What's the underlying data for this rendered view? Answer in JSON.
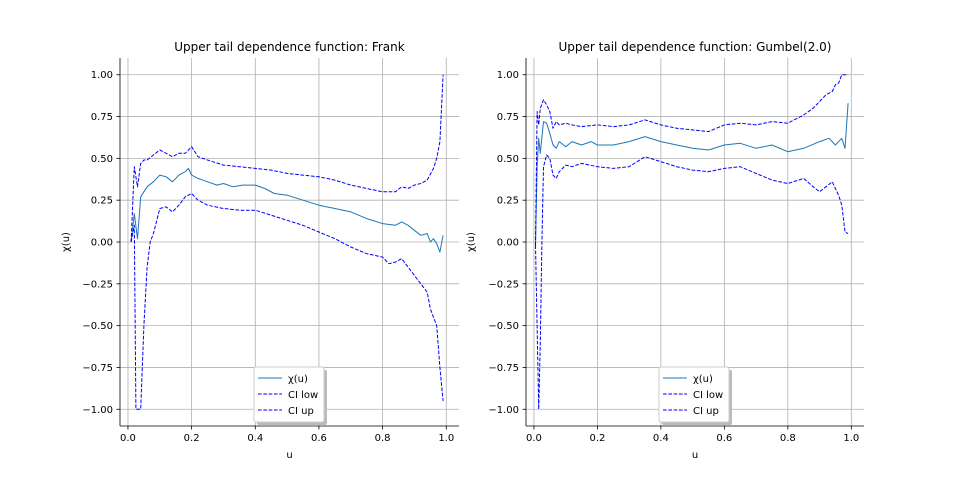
{
  "chart_data": [
    {
      "type": "line",
      "title": "Upper tail dependence function: Frank",
      "xlabel": "u",
      "ylabel": "χ(u)",
      "xlim": [
        -0.025,
        1.04
      ],
      "ylim": [
        -1.1,
        1.1
      ],
      "xticks": [
        0.0,
        0.2,
        0.4,
        0.6,
        0.8,
        1.0
      ],
      "xtick_labels": [
        "0.0",
        "0.2",
        "0.4",
        "0.6",
        "0.8",
        "1.0"
      ],
      "yticks": [
        -1.0,
        -0.75,
        -0.5,
        -0.25,
        0.0,
        0.25,
        0.5,
        0.75,
        1.0
      ],
      "ytick_labels": [
        "−1.00",
        "−0.75",
        "−0.50",
        "−0.25",
        "0.00",
        "0.25",
        "0.50",
        "0.75",
        "1.00"
      ],
      "grid": true,
      "legend_position": "lower-center",
      "series": [
        {
          "name": "χ(u)",
          "color": "#1f77b4",
          "dash": "solid",
          "x": [
            0.01,
            0.02,
            0.03,
            0.04,
            0.05,
            0.06,
            0.08,
            0.1,
            0.12,
            0.14,
            0.16,
            0.18,
            0.19,
            0.2,
            0.22,
            0.25,
            0.28,
            0.3,
            0.33,
            0.36,
            0.4,
            0.43,
            0.46,
            0.5,
            0.55,
            0.6,
            0.65,
            0.7,
            0.75,
            0.8,
            0.84,
            0.86,
            0.88,
            0.9,
            0.92,
            0.94,
            0.95,
            0.96,
            0.97,
            0.98,
            0.99
          ],
          "y": [
            0.0,
            0.17,
            0.02,
            0.27,
            0.3,
            0.33,
            0.36,
            0.4,
            0.39,
            0.36,
            0.4,
            0.42,
            0.44,
            0.4,
            0.38,
            0.36,
            0.34,
            0.35,
            0.33,
            0.34,
            0.34,
            0.32,
            0.29,
            0.28,
            0.25,
            0.22,
            0.2,
            0.18,
            0.14,
            0.11,
            0.1,
            0.12,
            0.1,
            0.07,
            0.04,
            0.05,
            0.0,
            0.02,
            -0.01,
            -0.06,
            0.04
          ]
        },
        {
          "name": "CI low",
          "color": "#0000ff",
          "dash": "dashed",
          "x": [
            0.01,
            0.02,
            0.025,
            0.03,
            0.04,
            0.05,
            0.06,
            0.07,
            0.08,
            0.1,
            0.12,
            0.14,
            0.16,
            0.18,
            0.2,
            0.22,
            0.25,
            0.3,
            0.35,
            0.4,
            0.45,
            0.5,
            0.55,
            0.6,
            0.65,
            0.7,
            0.75,
            0.8,
            0.82,
            0.84,
            0.86,
            0.88,
            0.9,
            0.92,
            0.94,
            0.95,
            0.96,
            0.97,
            0.98,
            0.99
          ],
          "y": [
            0.0,
            0.1,
            -1.0,
            -1.0,
            -1.0,
            -0.5,
            -0.15,
            0.0,
            0.05,
            0.2,
            0.21,
            0.18,
            0.22,
            0.27,
            0.29,
            0.25,
            0.22,
            0.2,
            0.19,
            0.19,
            0.16,
            0.13,
            0.1,
            0.06,
            0.02,
            -0.03,
            -0.07,
            -0.09,
            -0.13,
            -0.12,
            -0.1,
            -0.15,
            -0.2,
            -0.25,
            -0.3,
            -0.4,
            -0.45,
            -0.5,
            -0.75,
            -0.95
          ]
        },
        {
          "name": "CI up",
          "color": "#0000ff",
          "dash": "dashed",
          "x": [
            0.01,
            0.02,
            0.03,
            0.04,
            0.05,
            0.06,
            0.08,
            0.1,
            0.12,
            0.14,
            0.16,
            0.18,
            0.2,
            0.22,
            0.25,
            0.3,
            0.35,
            0.4,
            0.45,
            0.5,
            0.55,
            0.6,
            0.65,
            0.7,
            0.75,
            0.8,
            0.84,
            0.86,
            0.88,
            0.9,
            0.92,
            0.94,
            0.96,
            0.97,
            0.98,
            0.985,
            0.99
          ],
          "y": [
            0.0,
            0.45,
            0.33,
            0.47,
            0.49,
            0.49,
            0.52,
            0.55,
            0.53,
            0.51,
            0.53,
            0.53,
            0.57,
            0.51,
            0.49,
            0.46,
            0.45,
            0.44,
            0.43,
            0.41,
            0.4,
            0.39,
            0.37,
            0.34,
            0.32,
            0.3,
            0.3,
            0.33,
            0.32,
            0.34,
            0.35,
            0.37,
            0.44,
            0.5,
            0.6,
            0.8,
            1.0
          ]
        }
      ]
    },
    {
      "type": "line",
      "title": "Upper tail dependence function: Gumbel(2.0)",
      "xlabel": "u",
      "ylabel": "χ(u)",
      "xlim": [
        -0.025,
        1.04
      ],
      "ylim": [
        -1.1,
        1.1
      ],
      "xticks": [
        0.0,
        0.2,
        0.4,
        0.6,
        0.8,
        1.0
      ],
      "xtick_labels": [
        "0.0",
        "0.2",
        "0.4",
        "0.6",
        "0.8",
        "1.0"
      ],
      "yticks": [
        -1.0,
        -0.75,
        -0.5,
        -0.25,
        0.0,
        0.25,
        0.5,
        0.75,
        1.0
      ],
      "ytick_labels": [
        "−1.00",
        "−0.75",
        "−0.50",
        "−0.25",
        "0.00",
        "0.25",
        "0.50",
        "0.75",
        "1.00"
      ],
      "grid": true,
      "legend_position": "lower-center",
      "series": [
        {
          "name": "χ(u)",
          "color": "#1f77b4",
          "dash": "solid",
          "x": [
            0.005,
            0.01,
            0.015,
            0.02,
            0.03,
            0.04,
            0.05,
            0.06,
            0.07,
            0.08,
            0.1,
            0.12,
            0.15,
            0.18,
            0.2,
            0.25,
            0.3,
            0.35,
            0.4,
            0.45,
            0.5,
            0.55,
            0.6,
            0.65,
            0.7,
            0.75,
            0.8,
            0.85,
            0.9,
            0.93,
            0.95,
            0.97,
            0.98,
            0.99
          ],
          "y": [
            -0.02,
            0.45,
            0.62,
            0.53,
            0.72,
            0.71,
            0.65,
            0.58,
            0.56,
            0.6,
            0.57,
            0.6,
            0.58,
            0.6,
            0.58,
            0.58,
            0.6,
            0.63,
            0.6,
            0.58,
            0.56,
            0.55,
            0.58,
            0.59,
            0.56,
            0.58,
            0.54,
            0.56,
            0.6,
            0.62,
            0.58,
            0.62,
            0.56,
            0.83
          ]
        },
        {
          "name": "CI low",
          "color": "#0000ff",
          "dash": "dashed",
          "x": [
            0.005,
            0.01,
            0.015,
            0.02,
            0.025,
            0.03,
            0.04,
            0.05,
            0.06,
            0.07,
            0.08,
            0.1,
            0.12,
            0.15,
            0.2,
            0.25,
            0.3,
            0.35,
            0.4,
            0.45,
            0.5,
            0.55,
            0.6,
            0.65,
            0.7,
            0.75,
            0.8,
            0.85,
            0.88,
            0.9,
            0.92,
            0.94,
            0.95,
            0.96,
            0.97,
            0.98,
            0.99
          ],
          "y": [
            -0.02,
            -0.5,
            -1.0,
            -0.6,
            0.0,
            0.45,
            0.52,
            0.5,
            0.4,
            0.38,
            0.42,
            0.46,
            0.45,
            0.47,
            0.45,
            0.44,
            0.45,
            0.51,
            0.48,
            0.45,
            0.43,
            0.42,
            0.44,
            0.45,
            0.41,
            0.37,
            0.35,
            0.38,
            0.33,
            0.3,
            0.33,
            0.36,
            0.32,
            0.28,
            0.22,
            0.06,
            0.05
          ]
        },
        {
          "name": "CI up",
          "color": "#0000ff",
          "dash": "dashed",
          "x": [
            0.005,
            0.01,
            0.015,
            0.02,
            0.03,
            0.04,
            0.05,
            0.06,
            0.07,
            0.08,
            0.1,
            0.12,
            0.15,
            0.2,
            0.25,
            0.3,
            0.35,
            0.4,
            0.45,
            0.5,
            0.55,
            0.6,
            0.65,
            0.7,
            0.75,
            0.8,
            0.85,
            0.88,
            0.9,
            0.92,
            0.94,
            0.95,
            0.96,
            0.97,
            0.98,
            0.99
          ],
          "y": [
            -0.02,
            0.78,
            0.7,
            0.8,
            0.85,
            0.82,
            0.78,
            0.68,
            0.72,
            0.7,
            0.71,
            0.7,
            0.69,
            0.7,
            0.69,
            0.7,
            0.73,
            0.7,
            0.68,
            0.67,
            0.66,
            0.7,
            0.71,
            0.7,
            0.72,
            0.71,
            0.76,
            0.8,
            0.84,
            0.88,
            0.9,
            0.94,
            0.95,
            1.0,
            1.0,
            1.0
          ]
        }
      ]
    }
  ]
}
